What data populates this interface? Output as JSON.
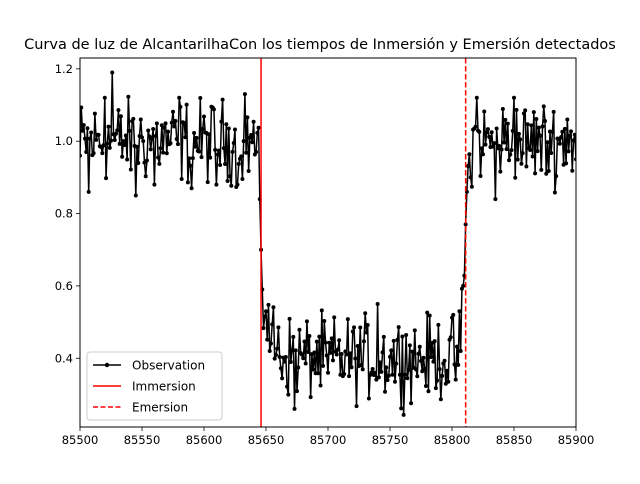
{
  "chart_data": {
    "type": "line",
    "title": "Curva de luz de AlcantarilhaCon los tiempos de Inmersión y Emersión detectados",
    "xlabel": "",
    "ylabel": "",
    "xlim": [
      85500,
      85900
    ],
    "ylim": [
      0.21,
      1.23
    ],
    "xticks": [
      85500,
      85550,
      85600,
      85650,
      85700,
      85750,
      85800,
      85850,
      85900
    ],
    "yticks": [
      0.4,
      0.6,
      0.8,
      1.0,
      1.2
    ],
    "ytick_labels": [
      "0.4",
      "0.6",
      "0.8",
      "1.0",
      "1.2"
    ],
    "grid": false,
    "legend": {
      "placement": "lower-left",
      "entries": [
        "Observation",
        "Immersion",
        "Emersion"
      ]
    },
    "colors": {
      "observation": "#000000",
      "immersion": "#ff0000",
      "emersion": "#ff0000"
    },
    "series": [
      {
        "name": "Observation",
        "style": "line-with-dots",
        "model": {
          "x_start": 85500,
          "x_end": 85900,
          "x_step": 1,
          "baseline_flux": 1.0,
          "bottom_flux": 0.4,
          "ingress_start": 85644,
          "ingress_end": 85651,
          "egress_start": 85805,
          "egress_end": 85815,
          "noise_amplitude": 0.055
        },
        "points": [
          {
            "x": 85500,
            "y": 0.96
          },
          {
            "x": 85507,
            "y": 0.86
          },
          {
            "x": 85520,
            "y": 1.12
          },
          {
            "x": 85526,
            "y": 1.19
          },
          {
            "x": 85545,
            "y": 0.85
          },
          {
            "x": 85560,
            "y": 0.88
          },
          {
            "x": 85580,
            "y": 1.12
          },
          {
            "x": 85590,
            "y": 0.87
          },
          {
            "x": 85610,
            "y": 0.88
          },
          {
            "x": 85627,
            "y": 0.88
          },
          {
            "x": 85633,
            "y": 1.13
          },
          {
            "x": 85642,
            "y": 0.97
          },
          {
            "x": 85645,
            "y": 0.84
          },
          {
            "x": 85646,
            "y": 0.7
          },
          {
            "x": 85647,
            "y": 0.59
          },
          {
            "x": 85650,
            "y": 0.53
          },
          {
            "x": 85673,
            "y": 0.26
          },
          {
            "x": 85700,
            "y": 0.36
          },
          {
            "x": 85740,
            "y": 0.55
          },
          {
            "x": 85760,
            "y": 0.46
          },
          {
            "x": 85790,
            "y": 0.37
          },
          {
            "x": 85801,
            "y": 0.52
          },
          {
            "x": 85809,
            "y": 0.6
          },
          {
            "x": 85811,
            "y": 0.77
          },
          {
            "x": 85812,
            "y": 0.86
          },
          {
            "x": 85815,
            "y": 0.9
          },
          {
            "x": 85820,
            "y": 1.12
          },
          {
            "x": 85835,
            "y": 0.84
          },
          {
            "x": 85850,
            "y": 1.12
          },
          {
            "x": 85860,
            "y": 0.93
          },
          {
            "x": 85876,
            "y": 0.91
          },
          {
            "x": 85893,
            "y": 1.06
          },
          {
            "x": 85900,
            "y": 0.95
          }
        ]
      }
    ],
    "vlines": [
      {
        "name": "Immersion",
        "x": 85646,
        "color": "#ff0000",
        "dash": "solid"
      },
      {
        "name": "Emersion",
        "x": 85811,
        "color": "#ff0000",
        "dash": "dashed"
      }
    ]
  }
}
